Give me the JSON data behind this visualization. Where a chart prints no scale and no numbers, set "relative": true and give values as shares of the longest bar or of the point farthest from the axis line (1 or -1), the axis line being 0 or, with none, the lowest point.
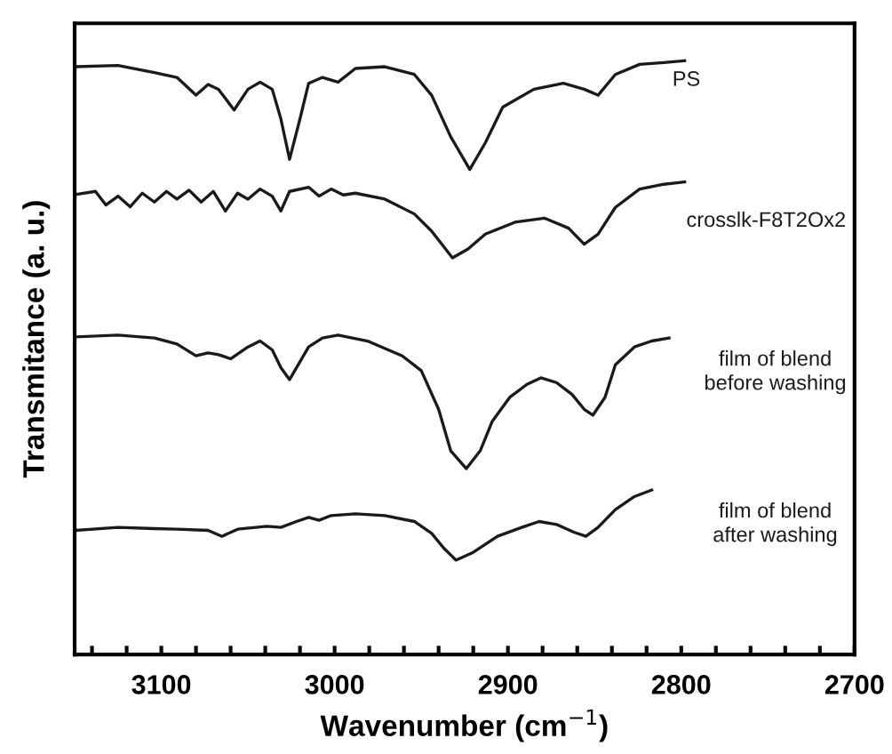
{
  "chart_data": {
    "type": "line",
    "relative": true,
    "xlabel": "Wavenumber (cm$^{−1}$)",
    "ylabel": "Transmitance (a. u.)",
    "xlim": [
      3150,
      2700
    ],
    "xticks": [
      {
        "value": 3140,
        "label": null
      },
      {
        "value": 3120,
        "label": null
      },
      3100,
      {
        "value": 3080,
        "label": null
      },
      {
        "value": 3060,
        "label": null
      },
      {
        "value": 3040,
        "label": null
      },
      {
        "value": 3020,
        "label": null
      },
      3000,
      {
        "value": 2980,
        "label": null
      },
      {
        "value": 2960,
        "label": null
      },
      {
        "value": 2940,
        "label": null
      },
      {
        "value": 2920,
        "label": null
      },
      2900,
      {
        "value": 2880,
        "label": null
      },
      {
        "value": 2860,
        "label": null
      },
      {
        "value": 2840,
        "label": null
      },
      {
        "value": 2820,
        "label": null
      },
      2800,
      {
        "value": 2780,
        "label": null
      },
      {
        "value": 2760,
        "label": null
      },
      {
        "value": 2740,
        "label": null
      },
      {
        "value": 2720,
        "label": null
      },
      2700
    ],
    "grid": false,
    "legend": false,
    "marker": "none",
    "line_style": "solid",
    "series": [
      {
        "name": "PS",
        "color": "#1a1a1a",
        "x": [
          3149,
          3125,
          3104,
          3091,
          3080,
          3073,
          3067,
          3058,
          3050,
          3043,
          3036,
          3031,
          3026,
          3020,
          3015,
          3007,
          2998,
          2988,
          2971,
          2954,
          2944,
          2933,
          2922,
          2913,
          2903,
          2885,
          2868,
          2856,
          2848,
          2838,
          2824,
          2810,
          2798
        ],
        "values": [
          0.99,
          0.992,
          0.98,
          0.972,
          0.942,
          0.96,
          0.952,
          0.917,
          0.952,
          0.964,
          0.952,
          0.902,
          0.834,
          0.902,
          0.962,
          0.972,
          0.964,
          0.987,
          0.99,
          0.977,
          0.942,
          0.872,
          0.817,
          0.862,
          0.922,
          0.952,
          0.962,
          0.952,
          0.942,
          0.977,
          0.994,
          0.997,
          1.0
        ]
      },
      {
        "name": "crosslk-F8T2Ox2",
        "color": "#1a1a1a",
        "x": [
          3149,
          3138,
          3132,
          3125,
          3118,
          3111,
          3104,
          3097,
          3091,
          3084,
          3077,
          3070,
          3063,
          3056,
          3050,
          3043,
          3036,
          3031,
          3026,
          3015,
          3009,
          3002,
          2995,
          2988,
          2971,
          2954,
          2944,
          2932,
          2923,
          2913,
          2896,
          2879,
          2865,
          2856,
          2848,
          2838,
          2824,
          2810,
          2798
        ],
        "values": [
          0.775,
          0.78,
          0.757,
          0.772,
          0.754,
          0.777,
          0.762,
          0.78,
          0.767,
          0.782,
          0.762,
          0.78,
          0.747,
          0.777,
          0.767,
          0.784,
          0.772,
          0.747,
          0.78,
          0.787,
          0.772,
          0.784,
          0.774,
          0.777,
          0.767,
          0.742,
          0.713,
          0.668,
          0.683,
          0.708,
          0.728,
          0.735,
          0.718,
          0.691,
          0.708,
          0.753,
          0.784,
          0.792,
          0.796
        ]
      },
      {
        "name": "film of blend\nbefore washing",
        "color": "#1a1a1a",
        "x": [
          3149,
          3125,
          3104,
          3091,
          3080,
          3073,
          3067,
          3060,
          3050,
          3043,
          3036,
          3031,
          3026,
          3020,
          3015,
          3007,
          2998,
          2981,
          2961,
          2950,
          2940,
          2933,
          2924,
          2916,
          2909,
          2899,
          2889,
          2881,
          2872,
          2863,
          2856,
          2851,
          2844,
          2838,
          2827,
          2817,
          2807
        ],
        "values": [
          0.535,
          0.538,
          0.533,
          0.523,
          0.503,
          0.508,
          0.505,
          0.498,
          0.518,
          0.528,
          0.513,
          0.483,
          0.463,
          0.493,
          0.518,
          0.533,
          0.538,
          0.528,
          0.503,
          0.478,
          0.413,
          0.343,
          0.313,
          0.343,
          0.393,
          0.433,
          0.455,
          0.466,
          0.458,
          0.438,
          0.413,
          0.403,
          0.433,
          0.488,
          0.518,
          0.528,
          0.533
        ]
      },
      {
        "name": "film of blend\nafter washing",
        "color": "#1a1a1a",
        "x": [
          3149,
          3125,
          3104,
          3091,
          3073,
          3065,
          3056,
          3039,
          3031,
          3022,
          3015,
          3009,
          3002,
          2988,
          2971,
          2954,
          2944,
          2937,
          2930,
          2920,
          2906,
          2892,
          2882,
          2872,
          2862,
          2855,
          2848,
          2838,
          2827,
          2817
        ],
        "values": [
          0.209,
          0.214,
          0.212,
          0.211,
          0.209,
          0.199,
          0.211,
          0.216,
          0.214,
          0.224,
          0.231,
          0.226,
          0.234,
          0.237,
          0.234,
          0.224,
          0.204,
          0.179,
          0.159,
          0.172,
          0.199,
          0.214,
          0.224,
          0.219,
          0.206,
          0.199,
          0.214,
          0.244,
          0.266,
          0.277
        ]
      }
    ]
  }
}
